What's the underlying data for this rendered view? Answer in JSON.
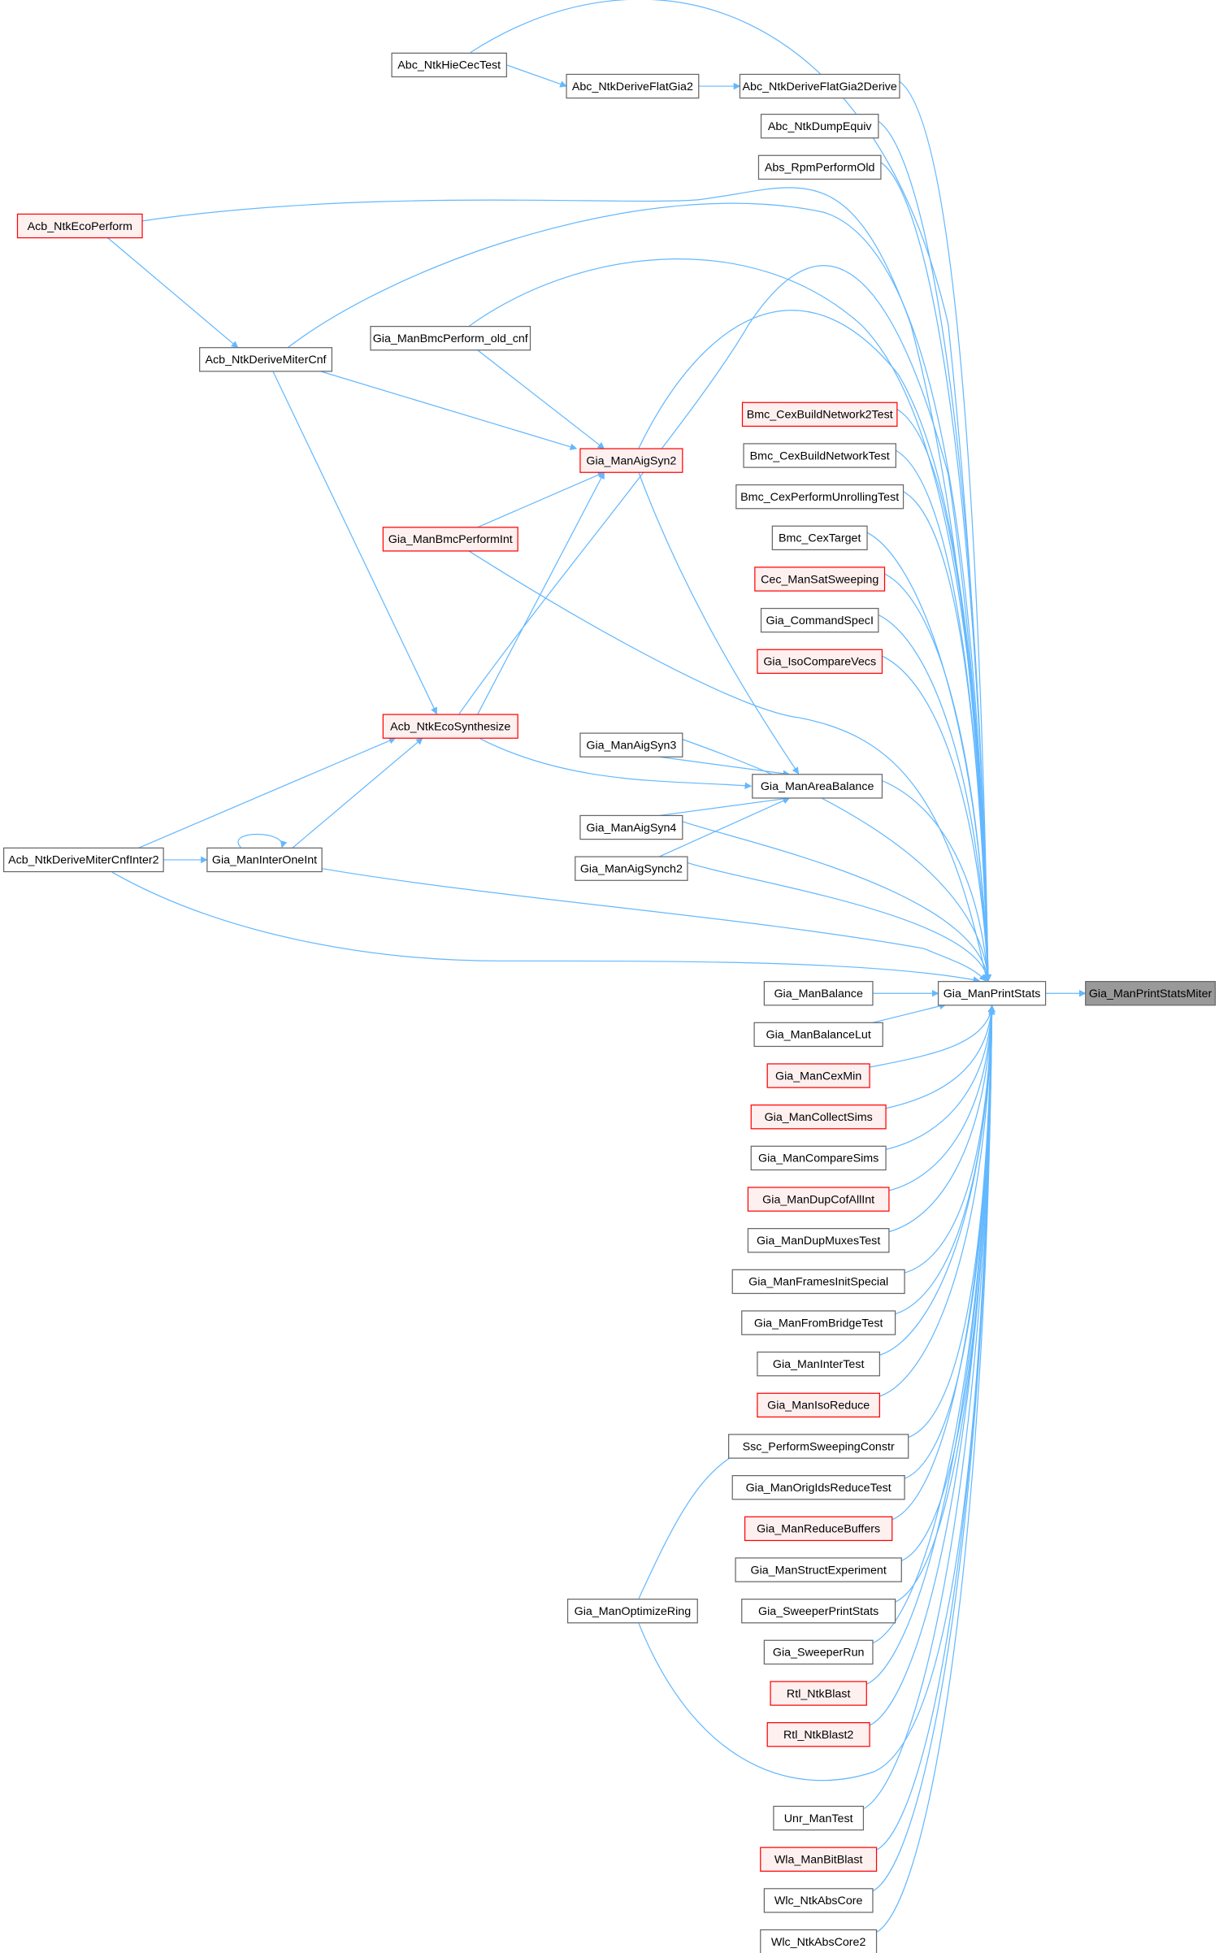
{
  "graph": {
    "edge_color": "#63b8ff",
    "highlight_border_color": "#ff0000",
    "current_fill_color": "#999999",
    "nodes": [
      {
        "id": "Abc_NtkHieCecTest",
        "label": "Abc_NtkHieCecTest",
        "style": "normal"
      },
      {
        "id": "Abc_NtkDeriveFlatGia2",
        "label": "Abc_NtkDeriveFlatGia2",
        "style": "normal"
      },
      {
        "id": "Abc_NtkDeriveFlatGia2Derive",
        "label": "Abc_NtkDeriveFlatGia2Derive",
        "style": "normal"
      },
      {
        "id": "Abc_NtkDumpEquiv",
        "label": "Abc_NtkDumpEquiv",
        "style": "normal"
      },
      {
        "id": "Abs_RpmPerformOld",
        "label": "Abs_RpmPerformOld",
        "style": "normal"
      },
      {
        "id": "Acb_NtkEcoPerform",
        "label": "Acb_NtkEcoPerform",
        "style": "red"
      },
      {
        "id": "Acb_NtkDeriveMiterCnf",
        "label": "Acb_NtkDeriveMiterCnf",
        "style": "normal"
      },
      {
        "id": "Gia_ManBmcPerform_old_cnf",
        "label": "Gia_ManBmcPerform_old_cnf",
        "style": "normal"
      },
      {
        "id": "Gia_ManAigSyn2",
        "label": "Gia_ManAigSyn2",
        "style": "red"
      },
      {
        "id": "Bmc_CexBuildNetwork2Test",
        "label": "Bmc_CexBuildNetwork2Test",
        "style": "red"
      },
      {
        "id": "Bmc_CexBuildNetworkTest",
        "label": "Bmc_CexBuildNetworkTest",
        "style": "normal"
      },
      {
        "id": "Bmc_CexPerformUnrollingTest",
        "label": "Bmc_CexPerformUnrollingTest",
        "style": "normal"
      },
      {
        "id": "Bmc_CexTarget",
        "label": "Bmc_CexTarget",
        "style": "normal"
      },
      {
        "id": "Gia_ManBmcPerformInt",
        "label": "Gia_ManBmcPerformInt",
        "style": "red"
      },
      {
        "id": "Cec_ManSatSweeping",
        "label": "Cec_ManSatSweeping",
        "style": "red"
      },
      {
        "id": "Gia_CommandSpecI",
        "label": "Gia_CommandSpecI",
        "style": "normal"
      },
      {
        "id": "Gia_IsoCompareVecs",
        "label": "Gia_IsoCompareVecs",
        "style": "red"
      },
      {
        "id": "Acb_NtkEcoSynthesize",
        "label": "Acb_NtkEcoSynthesize",
        "style": "red"
      },
      {
        "id": "Gia_ManAigSyn3",
        "label": "Gia_ManAigSyn3",
        "style": "normal"
      },
      {
        "id": "Gia_ManAreaBalance",
        "label": "Gia_ManAreaBalance",
        "style": "normal"
      },
      {
        "id": "Gia_ManAigSyn4",
        "label": "Gia_ManAigSyn4",
        "style": "normal"
      },
      {
        "id": "Gia_ManAigSynch2",
        "label": "Gia_ManAigSynch2",
        "style": "normal"
      },
      {
        "id": "Acb_NtkDeriveMiterCnfInter2",
        "label": "Acb_NtkDeriveMiterCnfInter2",
        "style": "normal"
      },
      {
        "id": "Gia_ManInterOneInt",
        "label": "Gia_ManInterOneInt",
        "style": "normal"
      },
      {
        "id": "Gia_ManPrintStats",
        "label": "Gia_ManPrintStats",
        "style": "normal"
      },
      {
        "id": "Gia_ManPrintStatsMiter",
        "label": "Gia_ManPrintStatsMiter",
        "style": "current"
      },
      {
        "id": "Gia_ManBalance",
        "label": "Gia_ManBalance",
        "style": "normal"
      },
      {
        "id": "Gia_ManBalanceLut",
        "label": "Gia_ManBalanceLut",
        "style": "normal"
      },
      {
        "id": "Gia_ManCexMin",
        "label": "Gia_ManCexMin",
        "style": "red"
      },
      {
        "id": "Gia_ManCollectSims",
        "label": "Gia_ManCollectSims",
        "style": "red"
      },
      {
        "id": "Gia_ManCompareSims",
        "label": "Gia_ManCompareSims",
        "style": "normal"
      },
      {
        "id": "Gia_ManDupCofAllInt",
        "label": "Gia_ManDupCofAllInt",
        "style": "red"
      },
      {
        "id": "Gia_ManDupMuxesTest",
        "label": "Gia_ManDupMuxesTest",
        "style": "normal"
      },
      {
        "id": "Gia_ManFramesInitSpecial",
        "label": "Gia_ManFramesInitSpecial",
        "style": "normal"
      },
      {
        "id": "Gia_ManFromBridgeTest",
        "label": "Gia_ManFromBridgeTest",
        "style": "normal"
      },
      {
        "id": "Gia_ManInterTest",
        "label": "Gia_ManInterTest",
        "style": "normal"
      },
      {
        "id": "Gia_ManIsoReduce",
        "label": "Gia_ManIsoReduce",
        "style": "red"
      },
      {
        "id": "Ssc_PerformSweepingConstr",
        "label": "Ssc_PerformSweepingConstr",
        "style": "normal"
      },
      {
        "id": "Gia_ManOrigIdsReduceTest",
        "label": "Gia_ManOrigIdsReduceTest",
        "style": "normal"
      },
      {
        "id": "Gia_ManReduceBuffers",
        "label": "Gia_ManReduceBuffers",
        "style": "red"
      },
      {
        "id": "Gia_ManStructExperiment",
        "label": "Gia_ManStructExperiment",
        "style": "normal"
      },
      {
        "id": "Gia_SweeperPrintStats",
        "label": "Gia_SweeperPrintStats",
        "style": "normal"
      },
      {
        "id": "Gia_ManOptimizeRing",
        "label": "Gia_ManOptimizeRing",
        "style": "normal"
      },
      {
        "id": "Gia_SweeperRun",
        "label": "Gia_SweeperRun",
        "style": "normal"
      },
      {
        "id": "Rtl_NtkBlast",
        "label": "Rtl_NtkBlast",
        "style": "red"
      },
      {
        "id": "Rtl_NtkBlast2",
        "label": "Rtl_NtkBlast2",
        "style": "red"
      },
      {
        "id": "Unr_ManTest",
        "label": "Unr_ManTest",
        "style": "normal"
      },
      {
        "id": "Wla_ManBitBlast",
        "label": "Wla_ManBitBlast",
        "style": "red"
      },
      {
        "id": "Wlc_NtkAbsCore",
        "label": "Wlc_NtkAbsCore",
        "style": "normal"
      },
      {
        "id": "Wlc_NtkAbsCore2",
        "label": "Wlc_NtkAbsCore2",
        "style": "normal"
      }
    ],
    "edges": [
      [
        "Abc_NtkHieCecTest",
        "Abc_NtkDeriveFlatGia2"
      ],
      [
        "Abc_NtkHieCecTest",
        "Gia_ManPrintStats"
      ],
      [
        "Abc_NtkDeriveFlatGia2",
        "Abc_NtkDeriveFlatGia2Derive"
      ],
      [
        "Abc_NtkDeriveFlatGia2Derive",
        "Gia_ManPrintStats"
      ],
      [
        "Abc_NtkDumpEquiv",
        "Gia_ManPrintStats"
      ],
      [
        "Abs_RpmPerformOld",
        "Gia_ManPrintStats"
      ],
      [
        "Acb_NtkEcoPerform",
        "Acb_NtkDeriveMiterCnf"
      ],
      [
        "Acb_NtkEcoPerform",
        "Gia_ManPrintStats"
      ],
      [
        "Acb_NtkDeriveMiterCnf",
        "Gia_ManAigSyn2"
      ],
      [
        "Acb_NtkDeriveMiterCnf",
        "Acb_NtkEcoSynthesize"
      ],
      [
        "Acb_NtkDeriveMiterCnf",
        "Gia_ManPrintStats"
      ],
      [
        "Gia_ManBmcPerform_old_cnf",
        "Gia_ManAigSyn2"
      ],
      [
        "Gia_ManBmcPerform_old_cnf",
        "Gia_ManPrintStats"
      ],
      [
        "Gia_ManAigSyn2",
        "Gia_ManAreaBalance"
      ],
      [
        "Gia_ManAigSyn2",
        "Gia_ManPrintStats"
      ],
      [
        "Gia_ManBmcPerformInt",
        "Gia_ManAigSyn2"
      ],
      [
        "Gia_ManBmcPerformInt",
        "Gia_ManPrintStats"
      ],
      [
        "Acb_NtkEcoSynthesize",
        "Gia_ManAigSyn2"
      ],
      [
        "Acb_NtkEcoSynthesize",
        "Gia_ManAreaBalance"
      ],
      [
        "Acb_NtkEcoSynthesize",
        "Gia_ManPrintStats"
      ],
      [
        "Bmc_CexBuildNetwork2Test",
        "Gia_ManPrintStats"
      ],
      [
        "Bmc_CexBuildNetworkTest",
        "Gia_ManPrintStats"
      ],
      [
        "Bmc_CexPerformUnrollingTest",
        "Gia_ManPrintStats"
      ],
      [
        "Bmc_CexTarget",
        "Gia_ManPrintStats"
      ],
      [
        "Cec_ManSatSweeping",
        "Gia_ManPrintStats"
      ],
      [
        "Gia_CommandSpecI",
        "Gia_ManPrintStats"
      ],
      [
        "Gia_IsoCompareVecs",
        "Gia_ManPrintStats"
      ],
      [
        "Gia_ManAigSyn3",
        "Gia_ManAreaBalance"
      ],
      [
        "Gia_ManAigSyn3",
        "Gia_ManPrintStats"
      ],
      [
        "Gia_ManAigSyn4",
        "Gia_ManAreaBalance"
      ],
      [
        "Gia_ManAigSyn4",
        "Gia_ManPrintStats"
      ],
      [
        "Gia_ManAigSynch2",
        "Gia_ManAreaBalance"
      ],
      [
        "Gia_ManAigSynch2",
        "Gia_ManPrintStats"
      ],
      [
        "Gia_ManAreaBalance",
        "Gia_ManPrintStats"
      ],
      [
        "Acb_NtkDeriveMiterCnfInter2",
        "Acb_NtkEcoSynthesize"
      ],
      [
        "Acb_NtkDeriveMiterCnfInter2",
        "Gia_ManInterOneInt"
      ],
      [
        "Acb_NtkDeriveMiterCnfInter2",
        "Gia_ManPrintStats"
      ],
      [
        "Gia_ManInterOneInt",
        "Acb_NtkEcoSynthesize"
      ],
      [
        "Gia_ManInterOneInt",
        "Gia_ManInterOneInt"
      ],
      [
        "Gia_ManInterOneInt",
        "Gia_ManPrintStats"
      ],
      [
        "Gia_ManPrintStats",
        "Gia_ManPrintStatsMiter"
      ],
      [
        "Gia_ManBalance",
        "Gia_ManPrintStats"
      ],
      [
        "Gia_ManBalanceLut",
        "Gia_ManPrintStats"
      ],
      [
        "Gia_ManCexMin",
        "Gia_ManPrintStats"
      ],
      [
        "Gia_ManCollectSims",
        "Gia_ManPrintStats"
      ],
      [
        "Gia_ManCompareSims",
        "Gia_ManPrintStats"
      ],
      [
        "Gia_ManDupCofAllInt",
        "Gia_ManPrintStats"
      ],
      [
        "Gia_ManDupMuxesTest",
        "Gia_ManPrintStats"
      ],
      [
        "Gia_ManFramesInitSpecial",
        "Gia_ManPrintStats"
      ],
      [
        "Gia_ManFromBridgeTest",
        "Gia_ManPrintStats"
      ],
      [
        "Gia_ManInterTest",
        "Gia_ManPrintStats"
      ],
      [
        "Gia_ManIsoReduce",
        "Gia_ManPrintStats"
      ],
      [
        "Ssc_PerformSweepingConstr",
        "Gia_ManPrintStats"
      ],
      [
        "Gia_ManOrigIdsReduceTest",
        "Gia_ManPrintStats"
      ],
      [
        "Gia_ManReduceBuffers",
        "Gia_ManPrintStats"
      ],
      [
        "Gia_ManStructExperiment",
        "Gia_ManPrintStats"
      ],
      [
        "Gia_SweeperPrintStats",
        "Gia_ManPrintStats"
      ],
      [
        "Gia_ManOptimizeRing",
        "Ssc_PerformSweepingConstr"
      ],
      [
        "Gia_ManOptimizeRing",
        "Gia_ManPrintStats"
      ],
      [
        "Gia_SweeperRun",
        "Gia_ManPrintStats"
      ],
      [
        "Rtl_NtkBlast",
        "Gia_ManPrintStats"
      ],
      [
        "Rtl_NtkBlast2",
        "Gia_ManPrintStats"
      ],
      [
        "Unr_ManTest",
        "Gia_ManPrintStats"
      ],
      [
        "Wla_ManBitBlast",
        "Gia_ManPrintStats"
      ],
      [
        "Wlc_NtkAbsCore",
        "Gia_ManPrintStats"
      ],
      [
        "Wlc_NtkAbsCore2",
        "Gia_ManPrintStats"
      ]
    ]
  }
}
